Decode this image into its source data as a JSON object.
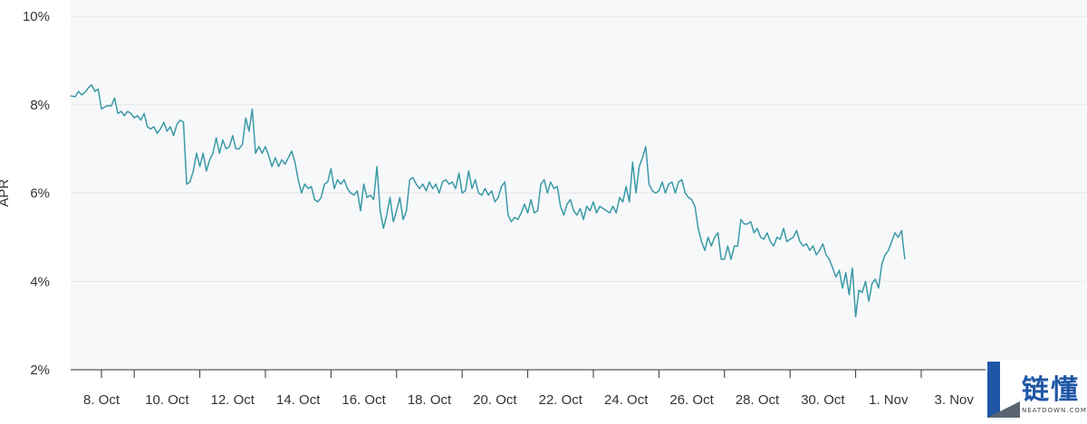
{
  "chart_data": {
    "type": "line",
    "title": "",
    "xlabel": "",
    "ylabel": "APR",
    "ylim": [
      2,
      10
    ],
    "y_ticks": [
      "2%",
      "4%",
      "6%",
      "8%",
      "10%"
    ],
    "y_tick_values": [
      2,
      4,
      6,
      8,
      10
    ],
    "x_ticks": [
      "8. Oct",
      "10. Oct",
      "12. Oct",
      "14. Oct",
      "16. Oct",
      "18. Oct",
      "20. Oct",
      "22. Oct",
      "24. Oct",
      "26. Oct",
      "28. Oct",
      "30. Oct",
      "1. Nov",
      "3. Nov"
    ],
    "x_range_days": [
      7.0,
      38.0
    ],
    "x_tick_days": [
      8,
      10,
      12,
      14,
      16,
      18,
      20,
      22,
      24,
      26,
      28,
      30,
      32,
      34
    ],
    "grid": true,
    "line_color": "#3a9aa6",
    "series": [
      {
        "name": "",
        "points": [
          [
            7.05,
            8.2
          ],
          [
            7.2,
            8.18
          ],
          [
            7.3,
            8.3
          ],
          [
            7.4,
            8.22
          ],
          [
            7.5,
            8.28
          ],
          [
            7.6,
            8.38
          ],
          [
            7.7,
            8.45
          ],
          [
            7.8,
            8.3
          ],
          [
            7.9,
            8.35
          ],
          [
            8.0,
            7.9
          ],
          [
            8.1,
            7.95
          ],
          [
            8.2,
            7.98
          ],
          [
            8.3,
            7.97
          ],
          [
            8.4,
            8.15
          ],
          [
            8.5,
            7.8
          ],
          [
            8.6,
            7.85
          ],
          [
            8.7,
            7.75
          ],
          [
            8.8,
            7.85
          ],
          [
            8.9,
            7.8
          ],
          [
            9.0,
            7.7
          ],
          [
            9.1,
            7.75
          ],
          [
            9.2,
            7.65
          ],
          [
            9.3,
            7.8
          ],
          [
            9.4,
            7.5
          ],
          [
            9.5,
            7.45
          ],
          [
            9.6,
            7.5
          ],
          [
            9.7,
            7.35
          ],
          [
            9.8,
            7.45
          ],
          [
            9.9,
            7.6
          ],
          [
            10.0,
            7.4
          ],
          [
            10.1,
            7.5
          ],
          [
            10.2,
            7.3
          ],
          [
            10.3,
            7.55
          ],
          [
            10.4,
            7.65
          ],
          [
            10.5,
            7.6
          ],
          [
            10.6,
            6.2
          ],
          [
            10.7,
            6.25
          ],
          [
            10.8,
            6.5
          ],
          [
            10.9,
            6.9
          ],
          [
            11.0,
            6.6
          ],
          [
            11.1,
            6.9
          ],
          [
            11.2,
            6.5
          ],
          [
            11.3,
            6.75
          ],
          [
            11.4,
            6.9
          ],
          [
            11.5,
            7.25
          ],
          [
            11.6,
            6.9
          ],
          [
            11.7,
            7.2
          ],
          [
            11.8,
            7.0
          ],
          [
            11.9,
            7.05
          ],
          [
            12.0,
            7.3
          ],
          [
            12.1,
            7.0
          ],
          [
            12.2,
            7.0
          ],
          [
            12.3,
            7.1
          ],
          [
            12.4,
            7.7
          ],
          [
            12.5,
            7.4
          ],
          [
            12.6,
            7.9
          ],
          [
            12.7,
            6.9
          ],
          [
            12.8,
            7.05
          ],
          [
            12.9,
            6.9
          ],
          [
            13.0,
            7.05
          ],
          [
            13.1,
            6.85
          ],
          [
            13.2,
            6.6
          ],
          [
            13.3,
            6.8
          ],
          [
            13.4,
            6.6
          ],
          [
            13.5,
            6.75
          ],
          [
            13.6,
            6.65
          ],
          [
            13.7,
            6.8
          ],
          [
            13.8,
            6.95
          ],
          [
            13.9,
            6.7
          ],
          [
            14.0,
            6.3
          ],
          [
            14.1,
            6.0
          ],
          [
            14.2,
            6.2
          ],
          [
            14.3,
            6.1
          ],
          [
            14.4,
            6.15
          ],
          [
            14.5,
            5.85
          ],
          [
            14.6,
            5.8
          ],
          [
            14.7,
            5.9
          ],
          [
            14.8,
            6.2
          ],
          [
            14.9,
            6.25
          ],
          [
            15.0,
            6.55
          ],
          [
            15.1,
            6.1
          ],
          [
            15.2,
            6.3
          ],
          [
            15.3,
            6.2
          ],
          [
            15.4,
            6.3
          ],
          [
            15.5,
            6.1
          ],
          [
            15.6,
            6.0
          ],
          [
            15.7,
            5.95
          ],
          [
            15.8,
            6.05
          ],
          [
            15.9,
            5.6
          ],
          [
            16.0,
            6.2
          ],
          [
            16.1,
            5.9
          ],
          [
            16.2,
            5.95
          ],
          [
            16.3,
            5.85
          ],
          [
            16.4,
            6.6
          ],
          [
            16.5,
            5.6
          ],
          [
            16.6,
            5.2
          ],
          [
            16.7,
            5.5
          ],
          [
            16.8,
            5.9
          ],
          [
            16.9,
            5.35
          ],
          [
            17.0,
            5.6
          ],
          [
            17.1,
            5.9
          ],
          [
            17.2,
            5.4
          ],
          [
            17.3,
            5.6
          ],
          [
            17.4,
            6.3
          ],
          [
            17.5,
            6.35
          ],
          [
            17.6,
            6.2
          ],
          [
            17.7,
            6.1
          ],
          [
            17.8,
            6.2
          ],
          [
            17.9,
            6.05
          ],
          [
            18.0,
            6.25
          ],
          [
            18.1,
            6.1
          ],
          [
            18.2,
            6.2
          ],
          [
            18.3,
            6.0
          ],
          [
            18.4,
            6.25
          ],
          [
            18.5,
            6.3
          ],
          [
            18.6,
            6.2
          ],
          [
            18.7,
            6.25
          ],
          [
            18.8,
            6.1
          ],
          [
            18.9,
            6.45
          ],
          [
            19.0,
            6.0
          ],
          [
            19.1,
            6.05
          ],
          [
            19.2,
            6.5
          ],
          [
            19.3,
            6.1
          ],
          [
            19.4,
            6.3
          ],
          [
            19.5,
            6.0
          ],
          [
            19.6,
            5.95
          ],
          [
            19.7,
            6.1
          ],
          [
            19.8,
            5.95
          ],
          [
            19.9,
            6.05
          ],
          [
            20.0,
            5.8
          ],
          [
            20.1,
            5.9
          ],
          [
            20.2,
            6.15
          ],
          [
            20.3,
            6.25
          ],
          [
            20.4,
            5.5
          ],
          [
            20.5,
            5.35
          ],
          [
            20.6,
            5.45
          ],
          [
            20.7,
            5.4
          ],
          [
            20.8,
            5.55
          ],
          [
            20.9,
            5.75
          ],
          [
            21.0,
            5.55
          ],
          [
            21.1,
            5.85
          ],
          [
            21.2,
            5.55
          ],
          [
            21.3,
            5.6
          ],
          [
            21.4,
            6.2
          ],
          [
            21.5,
            6.3
          ],
          [
            21.6,
            6.0
          ],
          [
            21.7,
            6.25
          ],
          [
            21.8,
            6.1
          ],
          [
            21.9,
            6.15
          ],
          [
            22.0,
            5.7
          ],
          [
            22.1,
            5.5
          ],
          [
            22.2,
            5.75
          ],
          [
            22.3,
            5.85
          ],
          [
            22.4,
            5.6
          ],
          [
            22.5,
            5.5
          ],
          [
            22.6,
            5.65
          ],
          [
            22.7,
            5.4
          ],
          [
            22.8,
            5.7
          ],
          [
            22.9,
            5.6
          ],
          [
            23.0,
            5.8
          ],
          [
            23.1,
            5.55
          ],
          [
            23.2,
            5.7
          ],
          [
            23.3,
            5.65
          ],
          [
            23.4,
            5.6
          ],
          [
            23.5,
            5.55
          ],
          [
            23.6,
            5.7
          ],
          [
            23.7,
            5.55
          ],
          [
            23.8,
            5.9
          ],
          [
            23.9,
            5.8
          ],
          [
            24.0,
            6.15
          ],
          [
            24.1,
            5.8
          ],
          [
            24.2,
            6.7
          ],
          [
            24.3,
            6.0
          ],
          [
            24.4,
            6.6
          ],
          [
            24.5,
            6.8
          ],
          [
            24.6,
            7.05
          ],
          [
            24.7,
            6.2
          ],
          [
            24.8,
            6.05
          ],
          [
            24.9,
            6.0
          ],
          [
            25.0,
            6.05
          ],
          [
            25.1,
            6.25
          ],
          [
            25.2,
            6.0
          ],
          [
            25.3,
            6.2
          ],
          [
            25.4,
            6.25
          ],
          [
            25.5,
            6.0
          ],
          [
            25.6,
            6.25
          ],
          [
            25.7,
            6.3
          ],
          [
            25.8,
            6.0
          ],
          [
            25.9,
            5.9
          ],
          [
            26.0,
            5.85
          ],
          [
            26.1,
            5.7
          ],
          [
            26.2,
            5.2
          ],
          [
            26.3,
            4.9
          ],
          [
            26.4,
            4.7
          ],
          [
            26.5,
            5.0
          ],
          [
            26.6,
            4.8
          ],
          [
            26.7,
            5.0
          ],
          [
            26.8,
            5.1
          ],
          [
            26.9,
            4.5
          ],
          [
            27.0,
            4.5
          ],
          [
            27.1,
            4.8
          ],
          [
            27.2,
            4.5
          ],
          [
            27.3,
            4.8
          ],
          [
            27.4,
            4.8
          ],
          [
            27.5,
            5.4
          ],
          [
            27.6,
            5.3
          ],
          [
            27.7,
            5.3
          ],
          [
            27.8,
            5.35
          ],
          [
            27.9,
            5.1
          ],
          [
            28.0,
            5.2
          ],
          [
            28.1,
            5.0
          ],
          [
            28.2,
            4.95
          ],
          [
            28.3,
            5.1
          ],
          [
            28.4,
            4.9
          ],
          [
            28.5,
            4.8
          ],
          [
            28.6,
            5.0
          ],
          [
            28.7,
            4.95
          ],
          [
            28.8,
            5.2
          ],
          [
            28.9,
            4.9
          ],
          [
            29.0,
            4.95
          ],
          [
            29.1,
            5.0
          ],
          [
            29.2,
            5.15
          ],
          [
            29.3,
            4.9
          ],
          [
            29.4,
            4.8
          ],
          [
            29.5,
            4.85
          ],
          [
            29.6,
            4.7
          ],
          [
            29.7,
            4.8
          ],
          [
            29.8,
            4.6
          ],
          [
            29.9,
            4.7
          ],
          [
            30.0,
            4.85
          ],
          [
            30.1,
            4.6
          ],
          [
            30.2,
            4.5
          ],
          [
            30.3,
            4.3
          ],
          [
            30.4,
            4.1
          ],
          [
            30.5,
            4.25
          ],
          [
            30.6,
            3.85
          ],
          [
            30.7,
            4.2
          ],
          [
            30.8,
            3.7
          ],
          [
            30.9,
            4.3
          ],
          [
            31.0,
            3.2
          ],
          [
            31.1,
            3.8
          ],
          [
            31.2,
            3.75
          ],
          [
            31.3,
            4.0
          ],
          [
            31.4,
            3.55
          ],
          [
            31.5,
            3.95
          ],
          [
            31.6,
            4.05
          ],
          [
            31.7,
            3.85
          ],
          [
            31.8,
            4.4
          ],
          [
            31.9,
            4.6
          ],
          [
            32.0,
            4.7
          ],
          [
            32.1,
            4.9
          ],
          [
            32.2,
            5.1
          ],
          [
            32.3,
            5.0
          ],
          [
            32.4,
            5.15
          ],
          [
            32.5,
            4.5
          ]
        ]
      }
    ]
  },
  "watermark": {
    "text": "链懂",
    "subtext": "NEATDOWN.COM"
  }
}
